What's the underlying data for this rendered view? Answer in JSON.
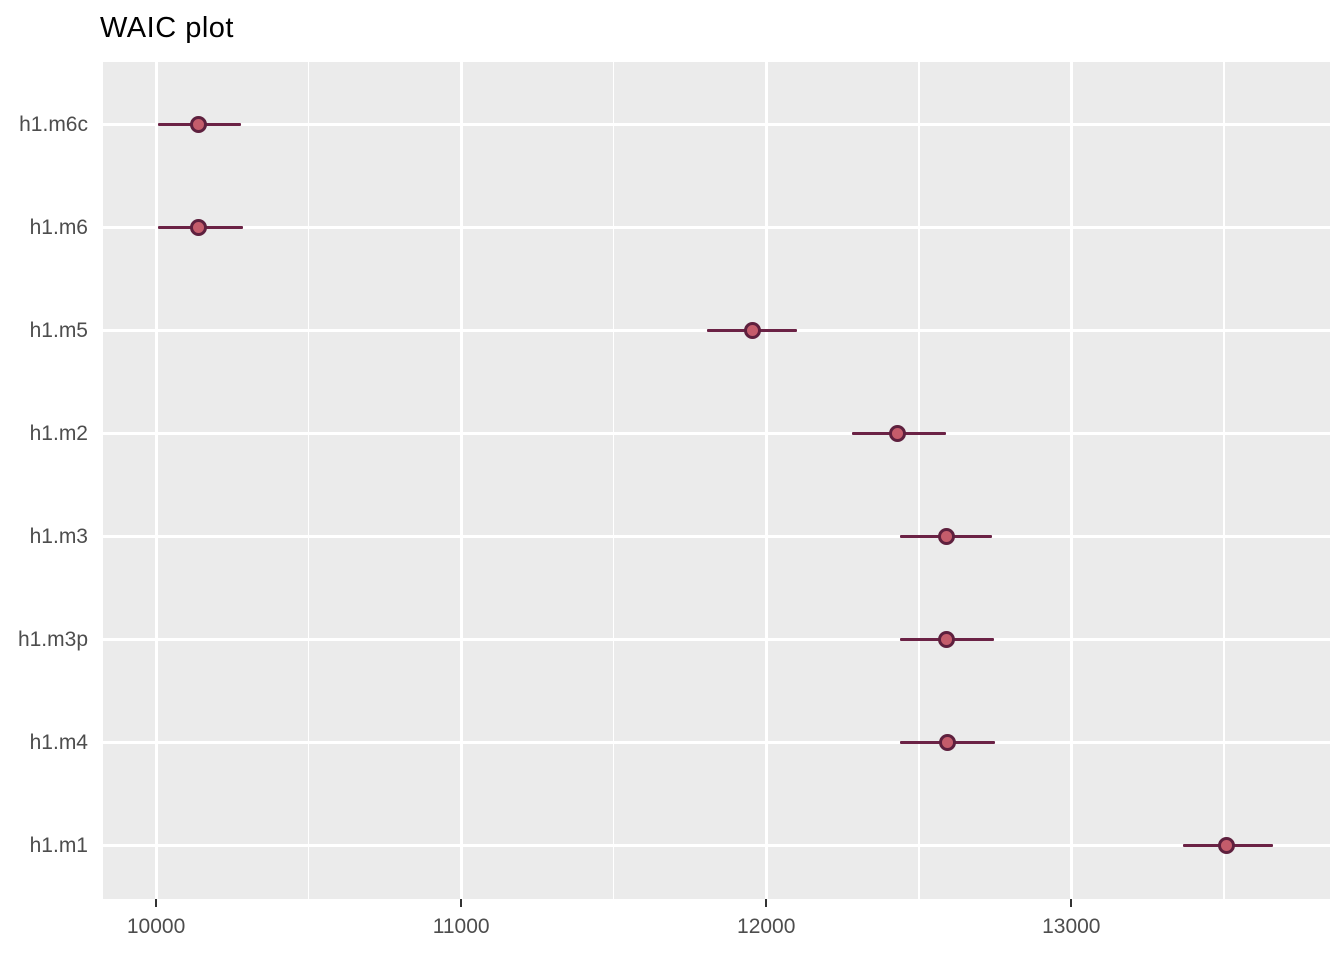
{
  "title": "WAIC plot",
  "chart_data": {
    "type": "scatter",
    "subtype": "pointrange-dotplot",
    "orientation": "horizontal",
    "title": "WAIC plot",
    "xlabel": "",
    "ylabel": "",
    "xlim": [
      9826,
      13848
    ],
    "x_major_ticks": [
      10000,
      11000,
      12000,
      13000
    ],
    "x_minor_ticks": [
      10500,
      11500,
      12500,
      13500
    ],
    "grid": "white major gridlines both axes, white minor vertical gridlines, gray panel, no axis lines",
    "legend": "none",
    "categories": [
      "h1.m6c",
      "h1.m6",
      "h1.m5",
      "h1.m2",
      "h1.m3",
      "h1.m3p",
      "h1.m4",
      "h1.m1"
    ],
    "points": [
      {
        "model": "h1.m6c",
        "waic": 10140,
        "lower": 10005,
        "upper": 10280
      },
      {
        "model": "h1.m6",
        "waic": 10140,
        "lower": 10005,
        "upper": 10285
      },
      {
        "model": "h1.m5",
        "waic": 11955,
        "lower": 11805,
        "upper": 12100
      },
      {
        "model": "h1.m2",
        "waic": 12430,
        "lower": 12280,
        "upper": 12590
      },
      {
        "model": "h1.m3",
        "waic": 12590,
        "lower": 12440,
        "upper": 12740
      },
      {
        "model": "h1.m3p",
        "waic": 12590,
        "lower": 12440,
        "upper": 12745
      },
      {
        "model": "h1.m4",
        "waic": 12595,
        "lower": 12440,
        "upper": 12750
      },
      {
        "model": "h1.m1",
        "waic": 13510,
        "lower": 13365,
        "upper": 13660
      }
    ],
    "colors": {
      "panel_bg": "#EBEBEB",
      "grid": "#FFFFFF",
      "point_fill": "#C45C6B",
      "point_border": "#5E203E",
      "errorbar": "#6B2245",
      "axis_tick": "#333333",
      "tick_label": "#4D4D4D",
      "title": "#000000"
    }
  }
}
